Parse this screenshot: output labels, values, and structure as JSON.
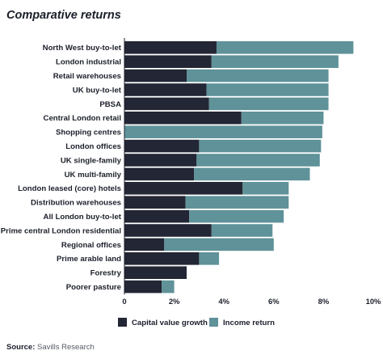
{
  "title": "Comparative returns",
  "source_label": "Source:",
  "source_text": "Savills Research",
  "colors": {
    "capital": "#232634",
    "income": "#5f9299"
  },
  "chart_data": {
    "type": "bar",
    "orientation": "horizontal",
    "stacked": true,
    "title": "Comparative returns",
    "categories": [
      "North West buy-to-let",
      "London industrial",
      "Retail warehouses",
      "UK buy-to-let",
      "PBSA",
      "Central London retail",
      "Shopping centres",
      "London offices",
      "UK single-family",
      "UK multi-family",
      "London leased (core) hotels",
      "Distribution warehouses",
      "All London buy-to-let",
      "Prime central London residential",
      "Regional offices",
      "Prime arable land",
      "Forestry",
      "Poorer pasture"
    ],
    "series": [
      {
        "name": "Capital value growth",
        "values": [
          3.7,
          3.5,
          2.5,
          3.3,
          3.4,
          4.7,
          0.0,
          3.0,
          2.9,
          2.8,
          4.75,
          2.45,
          2.6,
          3.5,
          1.6,
          3.0,
          2.5,
          1.5
        ]
      },
      {
        "name": "Income return",
        "values": [
          5.5,
          5.1,
          5.7,
          4.9,
          4.8,
          3.3,
          7.95,
          4.9,
          4.95,
          4.65,
          1.85,
          4.15,
          3.8,
          2.45,
          4.4,
          0.8,
          0.0,
          0.5
        ]
      }
    ],
    "x_ticks": [
      "0",
      "2%",
      "4%",
      "6%",
      "8%",
      "10%"
    ],
    "xlim": [
      0,
      10
    ],
    "legend_position": "bottom"
  }
}
